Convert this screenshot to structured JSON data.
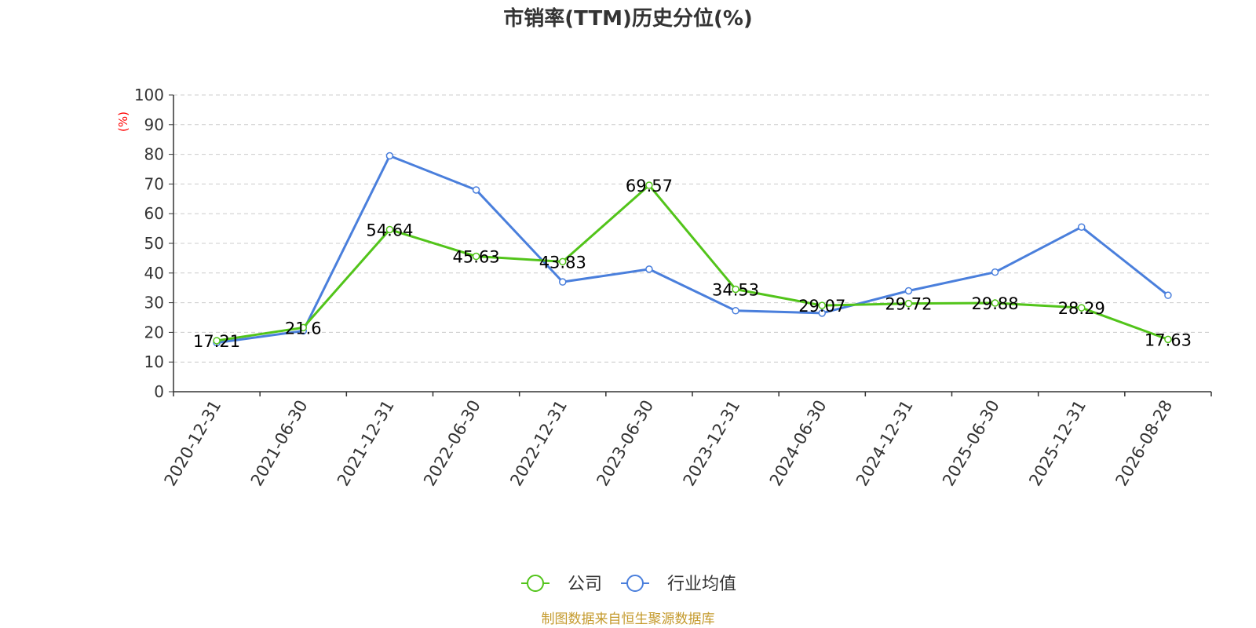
{
  "chart_data": {
    "type": "line",
    "title": "市销率(TTM)历史分位(%)",
    "ylabel": "(%)",
    "xlabel": "",
    "ylim": [
      0,
      100
    ],
    "yticks": [
      0,
      10,
      20,
      30,
      40,
      50,
      60,
      70,
      80,
      90,
      100
    ],
    "grid": true,
    "legend_position": "bottom-center",
    "categories": [
      "2020-12-31",
      "2021-06-30",
      "2021-12-31",
      "2022-06-30",
      "2022-12-31",
      "2023-06-30",
      "2023-12-31",
      "2024-06-30",
      "2024-12-31",
      "2025-06-30",
      "2025-12-31",
      "2026-08-28"
    ],
    "series": [
      {
        "name": "公司",
        "color": "#52c41a",
        "values": [
          17.21,
          21.6,
          54.64,
          45.63,
          43.83,
          69.57,
          34.53,
          29.07,
          29.72,
          29.88,
          28.29,
          17.63
        ],
        "labels": [
          "17.21",
          "21.6",
          "54.64",
          "45.63",
          "43.83",
          "69.57",
          "34.53",
          "29.07",
          "29.72",
          "29.88",
          "28.29",
          "17.63"
        ]
      },
      {
        "name": "行业均值",
        "color": "#4a7fdc",
        "values": [
          16.5,
          20.5,
          79.5,
          68,
          37,
          41.3,
          27.3,
          26.5,
          34,
          40.3,
          55.5,
          32.5
        ]
      }
    ],
    "source": "制图数据来自恒生聚源数据库",
    "colors": {
      "title": "#333333",
      "ylabel": "#ff0000",
      "source": "#c49a2c",
      "axis": "#333333",
      "grid": "#cccccc"
    }
  }
}
